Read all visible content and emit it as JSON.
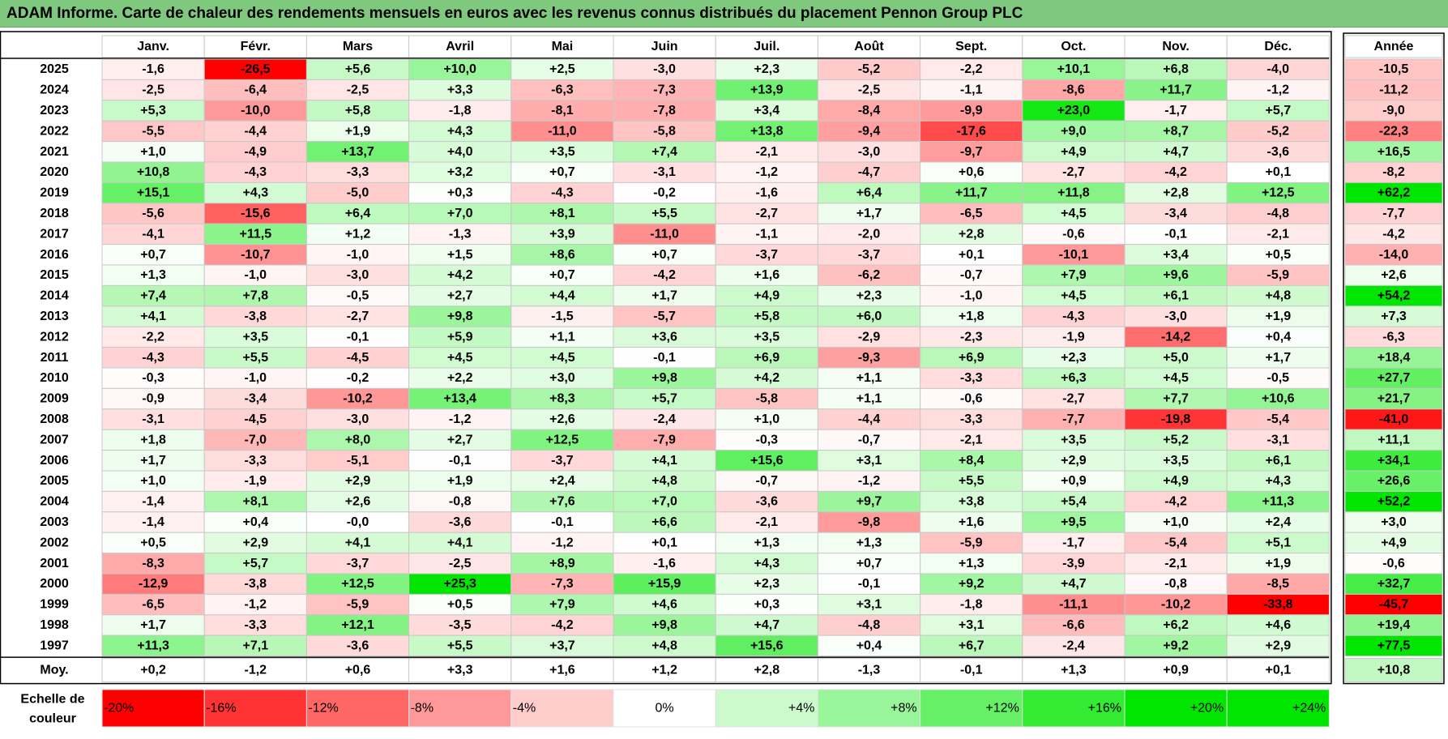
{
  "title": "ADAM Informe. Carte de chaleur des rendements mensuels en euros avec les revenus connus distribués du placement Pennon Group PLC",
  "chart_data": {
    "type": "heatmap",
    "columns": [
      "Janv.",
      "Févr.",
      "Mars",
      "Avril",
      "Mai",
      "Juin",
      "Juil.",
      "Août",
      "Sept.",
      "Oct.",
      "Nov.",
      "Déc."
    ],
    "year_header": "Année",
    "average_label": "Moy.",
    "rows": [
      {
        "year": "2025",
        "values": [
          "-1,6",
          "-26,5",
          "+5,6",
          "+10,0",
          "+2,5",
          "-3,0",
          "+2,3",
          "-5,2",
          "-2,2",
          "+10,1",
          "+6,8",
          "-4,0"
        ],
        "annual": "-10,5"
      },
      {
        "year": "2024",
        "values": [
          "-2,5",
          "-6,4",
          "-2,5",
          "+3,3",
          "-6,3",
          "-7,3",
          "+13,9",
          "-2,5",
          "-1,1",
          "-8,6",
          "+11,7",
          "-1,2"
        ],
        "annual": "-11,2"
      },
      {
        "year": "2023",
        "values": [
          "+5,3",
          "-10,0",
          "+5,8",
          "-1,8",
          "-8,1",
          "-7,8",
          "+3,4",
          "-8,4",
          "-9,9",
          "+23,0",
          "-1,7",
          "+5,7"
        ],
        "annual": "-9,0"
      },
      {
        "year": "2022",
        "values": [
          "-5,5",
          "-4,4",
          "+1,9",
          "+4,3",
          "-11,0",
          "-5,8",
          "+13,8",
          "-9,4",
          "-17,6",
          "+9,0",
          "+8,7",
          "-5,2"
        ],
        "annual": "-22,3"
      },
      {
        "year": "2021",
        "values": [
          "+1,0",
          "-4,9",
          "+13,7",
          "+4,0",
          "+3,5",
          "+7,4",
          "-2,1",
          "-3,0",
          "-9,7",
          "+4,9",
          "+4,7",
          "-3,6"
        ],
        "annual": "+16,5"
      },
      {
        "year": "2020",
        "values": [
          "+10,8",
          "-4,3",
          "-3,3",
          "+3,2",
          "+0,7",
          "-3,1",
          "-1,2",
          "-4,7",
          "+0,6",
          "-2,7",
          "-4,2",
          "+0,1"
        ],
        "annual": "-8,2"
      },
      {
        "year": "2019",
        "values": [
          "+15,1",
          "+4,3",
          "-5,0",
          "+0,3",
          "-4,3",
          "-0,2",
          "-1,6",
          "+6,4",
          "+11,7",
          "+11,8",
          "+2,8",
          "+12,5"
        ],
        "annual": "+62,2"
      },
      {
        "year": "2018",
        "values": [
          "-5,6",
          "-15,6",
          "+6,4",
          "+7,0",
          "+8,1",
          "+5,5",
          "-2,7",
          "+1,7",
          "-6,5",
          "+4,5",
          "-3,4",
          "-4,8"
        ],
        "annual": "-7,7"
      },
      {
        "year": "2017",
        "values": [
          "-4,1",
          "+11,5",
          "+1,2",
          "-1,3",
          "+3,9",
          "-11,0",
          "-1,1",
          "-2,0",
          "+2,8",
          "-0,6",
          "-0,1",
          "-2,1"
        ],
        "annual": "-4,2"
      },
      {
        "year": "2016",
        "values": [
          "+0,7",
          "-10,7",
          "-1,0",
          "+1,5",
          "+8,6",
          "+0,7",
          "-3,7",
          "-3,7",
          "+0,1",
          "-10,1",
          "+3,4",
          "+0,5"
        ],
        "annual": "-14,0"
      },
      {
        "year": "2015",
        "values": [
          "+1,3",
          "-1,0",
          "-3,0",
          "+4,2",
          "+0,7",
          "-4,2",
          "+1,6",
          "-6,2",
          "-0,7",
          "+7,9",
          "+9,6",
          "-5,9"
        ],
        "annual": "+2,6"
      },
      {
        "year": "2014",
        "values": [
          "+7,4",
          "+7,8",
          "-0,5",
          "+2,7",
          "+4,4",
          "+1,7",
          "+4,9",
          "+2,3",
          "-1,0",
          "+4,5",
          "+6,1",
          "+4,8"
        ],
        "annual": "+54,2"
      },
      {
        "year": "2013",
        "values": [
          "+4,1",
          "-3,8",
          "-2,7",
          "+9,8",
          "-1,5",
          "-5,7",
          "+5,8",
          "+6,0",
          "+1,8",
          "-4,3",
          "-3,0",
          "+1,9"
        ],
        "annual": "+7,3"
      },
      {
        "year": "2012",
        "values": [
          "-2,2",
          "+3,5",
          "-0,1",
          "+5,9",
          "+1,1",
          "+3,6",
          "+3,5",
          "-2,9",
          "-2,3",
          "-1,9",
          "-14,2",
          "+0,4"
        ],
        "annual": "-6,3"
      },
      {
        "year": "2011",
        "values": [
          "-4,3",
          "+5,5",
          "-4,5",
          "+4,5",
          "+4,5",
          "-0,1",
          "+6,9",
          "-9,3",
          "+6,9",
          "+2,3",
          "+5,0",
          "+1,7"
        ],
        "annual": "+18,4"
      },
      {
        "year": "2010",
        "values": [
          "-0,3",
          "-1,0",
          "-0,2",
          "+2,2",
          "+3,0",
          "+9,8",
          "+4,2",
          "+1,1",
          "-3,3",
          "+6,3",
          "+4,5",
          "-0,5"
        ],
        "annual": "+27,7"
      },
      {
        "year": "2009",
        "values": [
          "-0,9",
          "-3,4",
          "-10,2",
          "+13,4",
          "+8,3",
          "+5,7",
          "-5,8",
          "+1,1",
          "-0,6",
          "-2,7",
          "+7,7",
          "+10,6"
        ],
        "annual": "+21,7"
      },
      {
        "year": "2008",
        "values": [
          "-3,1",
          "-4,5",
          "-3,0",
          "-1,2",
          "+2,6",
          "-2,4",
          "+1,0",
          "-4,4",
          "-3,3",
          "-7,7",
          "-19,8",
          "-5,4"
        ],
        "annual": "-41,0"
      },
      {
        "year": "2007",
        "values": [
          "+1,8",
          "-7,0",
          "+8,0",
          "+2,7",
          "+12,5",
          "-7,9",
          "-0,3",
          "-0,7",
          "-2,1",
          "+3,5",
          "+5,2",
          "-3,1"
        ],
        "annual": "+11,1"
      },
      {
        "year": "2006",
        "values": [
          "+1,7",
          "-3,3",
          "-5,1",
          "-0,1",
          "-3,7",
          "+4,1",
          "+15,6",
          "+3,1",
          "+8,4",
          "+2,9",
          "+3,5",
          "+6,1"
        ],
        "annual": "+34,1"
      },
      {
        "year": "2005",
        "values": [
          "+1,0",
          "-1,9",
          "+2,9",
          "+1,9",
          "+2,4",
          "+4,8",
          "-0,7",
          "-1,2",
          "+5,5",
          "+0,9",
          "+4,9",
          "+4,3"
        ],
        "annual": "+26,6"
      },
      {
        "year": "2004",
        "values": [
          "-1,4",
          "+8,1",
          "+2,6",
          "-0,8",
          "+7,6",
          "+7,0",
          "-3,6",
          "+9,7",
          "+3,8",
          "+5,4",
          "-4,2",
          "+11,3"
        ],
        "annual": "+52,2"
      },
      {
        "year": "2003",
        "values": [
          "-1,4",
          "+0,4",
          "-0,0",
          "-3,6",
          "-0,1",
          "+6,6",
          "-2,1",
          "-9,8",
          "+1,6",
          "+9,5",
          "+1,0",
          "+2,4"
        ],
        "annual": "+3,0"
      },
      {
        "year": "2002",
        "values": [
          "+0,5",
          "+2,9",
          "+4,1",
          "+4,1",
          "-1,2",
          "+0,1",
          "+1,3",
          "+1,3",
          "-5,9",
          "-1,7",
          "-5,4",
          "+5,1"
        ],
        "annual": "+4,9"
      },
      {
        "year": "2001",
        "values": [
          "-8,3",
          "+5,7",
          "-3,7",
          "-2,5",
          "+8,9",
          "-1,6",
          "+4,3",
          "+0,7",
          "+1,3",
          "-3,9",
          "-2,1",
          "+1,9"
        ],
        "annual": "-0,6"
      },
      {
        "year": "2000",
        "values": [
          "-12,9",
          "-3,8",
          "+12,5",
          "+25,3",
          "-7,3",
          "+15,9",
          "+2,3",
          "-0,1",
          "+9,2",
          "+4,7",
          "-0,8",
          "-8,5"
        ],
        "annual": "+32,7"
      },
      {
        "year": "1999",
        "values": [
          "-6,5",
          "-1,2",
          "-5,9",
          "+0,5",
          "+7,9",
          "+4,6",
          "+0,3",
          "+3,1",
          "-1,8",
          "-11,1",
          "-10,2",
          "-33,8"
        ],
        "annual": "-45,7"
      },
      {
        "year": "1998",
        "values": [
          "+1,7",
          "-3,3",
          "+12,1",
          "-3,5",
          "-4,2",
          "+9,8",
          "+4,7",
          "-4,8",
          "+3,1",
          "-6,6",
          "+6,2",
          "+4,6"
        ],
        "annual": "+19,4"
      },
      {
        "year": "1997",
        "values": [
          "+11,3",
          "+7,1",
          "-3,6",
          "+5,5",
          "+3,7",
          "+4,8",
          "+15,6",
          "+0,4",
          "+6,7",
          "-2,4",
          "+9,2",
          "+2,9"
        ],
        "annual": "+77,5"
      }
    ],
    "averages": [
      "+0,2",
      "-1,2",
      "+0,6",
      "+3,3",
      "+1,6",
      "+1,2",
      "+2,8",
      "-1,3",
      "-0,1",
      "+1,3",
      "+0,9",
      "+0,1"
    ],
    "average_annual": "+10,8",
    "scale_label": [
      "Echelle de",
      "couleur"
    ],
    "scale": [
      "-20%",
      "-16%",
      "-12%",
      "-8%",
      "-4%",
      "0%",
      "+4%",
      "+8%",
      "+12%",
      "+16%",
      "+20%",
      "+24%"
    ],
    "colors": {
      "negative_full": "#ff0000",
      "positive_full": "#00e600",
      "neutral": "#ffffff",
      "title_bg": "#7fc97f"
    }
  }
}
